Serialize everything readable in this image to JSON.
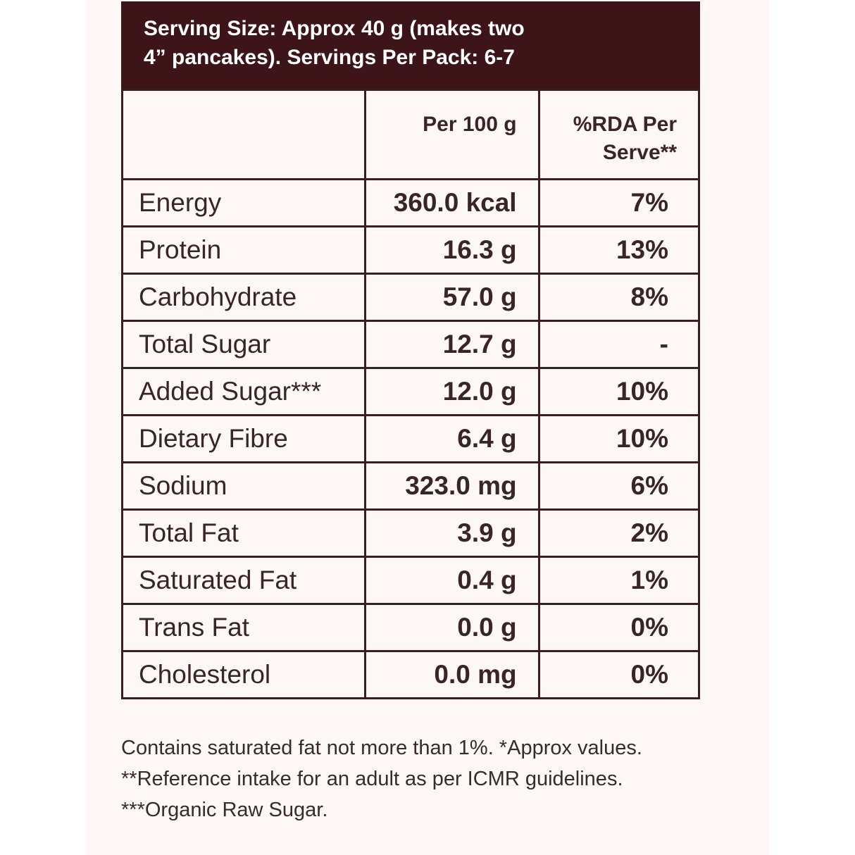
{
  "header": {
    "serving_line_1": "Serving Size: Approx 40 g (makes two",
    "serving_line_2": "4” pancakes). Servings Per Pack: 6-7"
  },
  "table": {
    "columns": {
      "per_100g": "Per 100 g",
      "rda_line_1": "%RDA Per",
      "rda_line_2": "Serve**"
    },
    "rows": [
      {
        "nutrient": "Energy",
        "per_100g": "360.0 kcal",
        "rda": "7%"
      },
      {
        "nutrient": "Protein",
        "per_100g": "16.3 g",
        "rda": "13%"
      },
      {
        "nutrient": "Carbohydrate",
        "per_100g": "57.0 g",
        "rda": "8%"
      },
      {
        "nutrient": "Total Sugar",
        "per_100g": "12.7 g",
        "rda": "-"
      },
      {
        "nutrient": "Added Sugar***",
        "per_100g": "12.0 g",
        "rda": "10%"
      },
      {
        "nutrient": "Dietary Fibre",
        "per_100g": "6.4 g",
        "rda": "10%"
      },
      {
        "nutrient": "Sodium",
        "per_100g": "323.0 mg",
        "rda": "6%"
      },
      {
        "nutrient": "Total Fat",
        "per_100g": "3.9 g",
        "rda": "2%"
      },
      {
        "nutrient": "Saturated Fat",
        "per_100g": "0.4 g",
        "rda": "1%"
      },
      {
        "nutrient": "Trans Fat",
        "per_100g": "0.0 g",
        "rda": "0%"
      },
      {
        "nutrient": "Cholesterol",
        "per_100g": "0.0 mg",
        "rda": "0%"
      }
    ]
  },
  "footnotes": [
    "Contains saturated fat not more than 1%. *Approx values.",
    "**Reference intake for an adult as per ICMR guidelines.",
    "***Organic Raw Sugar."
  ],
  "colors": {
    "header_bg": "#3d1417",
    "border": "#3a1e1e",
    "panel_bg": "#fdf7f5",
    "text": "#3a2525"
  }
}
